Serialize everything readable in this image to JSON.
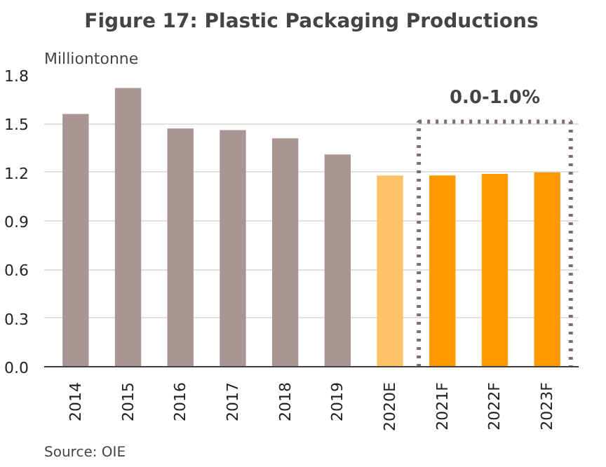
{
  "chart_data": {
    "type": "bar",
    "title": "Figure 17: Plastic Packaging Productions",
    "ylabel": "Milliontonne",
    "categories": [
      "2014",
      "2015",
      "2016",
      "2017",
      "2018",
      "2019",
      "2020E",
      "2021F",
      "2022F",
      "2023F"
    ],
    "values": [
      1.56,
      1.72,
      1.47,
      1.46,
      1.41,
      1.31,
      1.18,
      1.18,
      1.19,
      1.2
    ],
    "colors": [
      "#a99694",
      "#a99694",
      "#a99694",
      "#a99694",
      "#a99694",
      "#a99694",
      "#ffc266",
      "#ff9900",
      "#ff9900",
      "#ff9900"
    ],
    "ylim": [
      0,
      1.8
    ],
    "yticks": [
      {
        "value": 0,
        "label": "0.0"
      },
      {
        "value": 0.3,
        "label": "0.3"
      },
      {
        "value": 0.6,
        "label": "0.6"
      },
      {
        "value": 0.9,
        "label": "0.9"
      },
      {
        "value": 1.2,
        "label": "1.2"
      },
      {
        "value": 1.5,
        "label": "1.5"
      },
      {
        "value": 1.8,
        "label": "1.8"
      }
    ],
    "grid": "y",
    "annotations": [
      "0.0-1.0%",
      "Source: OIE"
    ]
  }
}
